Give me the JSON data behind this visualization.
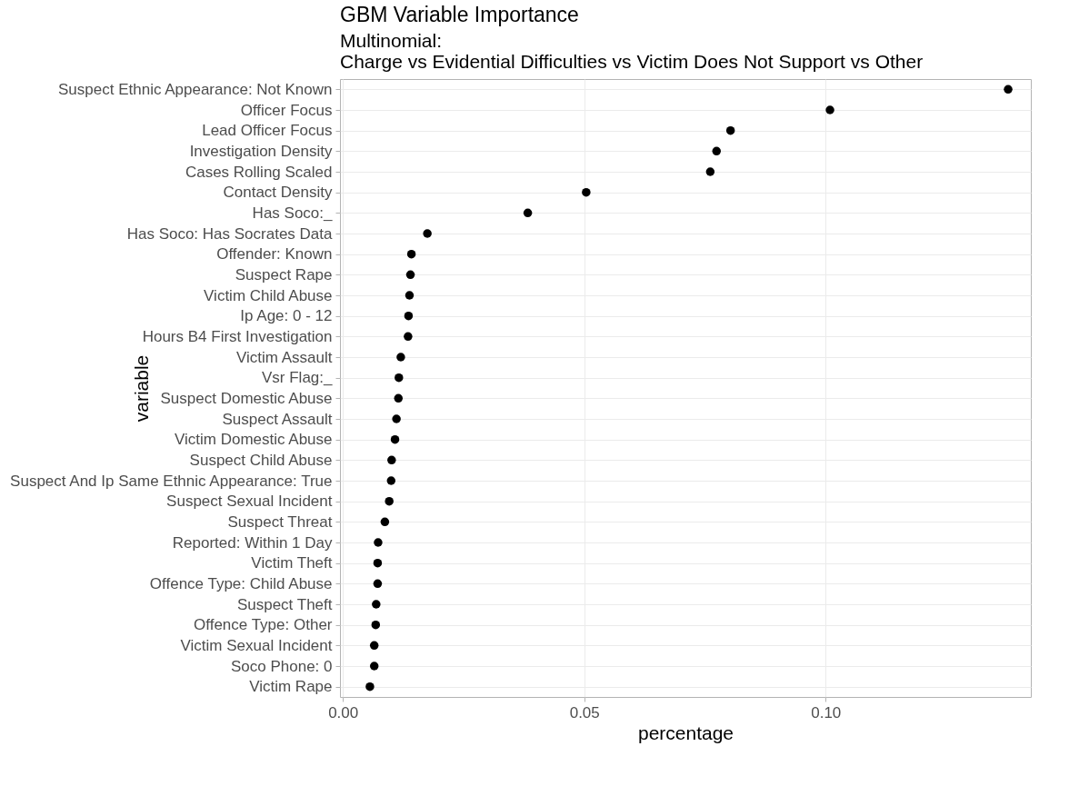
{
  "chart_data": {
    "type": "scatter",
    "title": "GBM Variable Importance",
    "subtitle": "Multinomial:\nCharge vs Evidential Difficulties vs Victim Does Not Support vs Other",
    "xlabel": "percentage",
    "ylabel": "variable",
    "categories": [
      "Suspect Ethnic Appearance: Not Known",
      "Officer Focus",
      "Lead Officer Focus",
      "Investigation Density",
      "Cases Rolling  Scaled",
      "Contact Density",
      "Has Soco:_",
      "Has Soco: Has Socrates Data",
      "Offender: Known",
      "Suspect Rape",
      "Victim Child Abuse",
      "Ip Age: 0 - 12",
      "Hours B4 First Investigation",
      "Victim Assault",
      "Vsr Flag:_",
      "Suspect Domestic Abuse",
      "Suspect Assault",
      "Victim Domestic Abuse",
      "Suspect Child Abuse",
      "Suspect And Ip Same Ethnic Appearance: True",
      "Suspect Sexual Incident",
      "Suspect Threat",
      "Reported: Within 1 Day",
      "Victim Theft",
      "Offence Type: Child Abuse",
      "Suspect Theft",
      "Offence Type: Other",
      "Victim Sexual Incident",
      "Soco Phone: 0",
      "Victim Rape"
    ],
    "series": [
      {
        "color": "#000000",
        "values": [
          0.1378,
          0.1009,
          0.0803,
          0.0774,
          0.0761,
          0.0504,
          0.0383,
          0.0175,
          0.0142,
          0.014,
          0.0138,
          0.0136,
          0.0135,
          0.012,
          0.0116,
          0.0115,
          0.0111,
          0.0108,
          0.0101,
          0.01,
          0.0096,
          0.0087,
          0.0073,
          0.0072,
          0.0072,
          0.0069,
          0.0068,
          0.0065,
          0.0065,
          0.0056
        ]
      }
    ],
    "xlim": [
      -0.0006,
      0.1425
    ],
    "xticks": [
      {
        "value": 0,
        "label": "0.00"
      },
      0.05,
      {
        "value": 0.1,
        "label": "0.10"
      }
    ],
    "grid": true,
    "marker": "circle",
    "orientation": "horizontal"
  }
}
